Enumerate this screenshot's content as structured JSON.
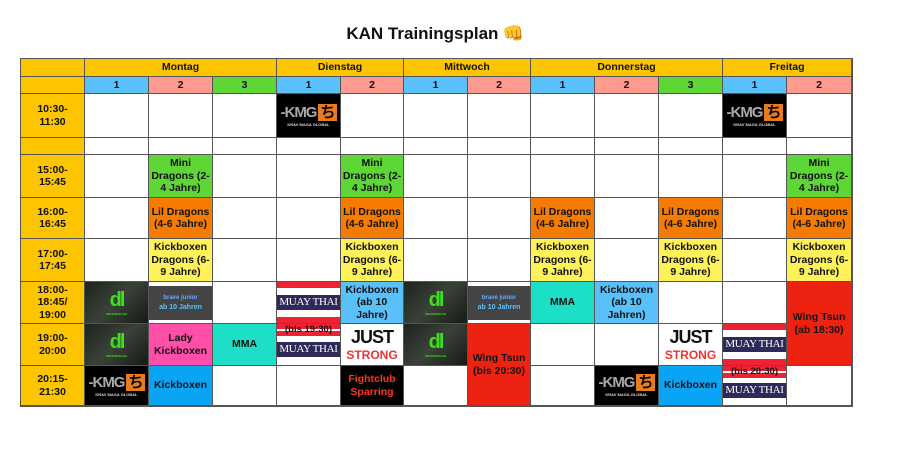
{
  "title": "KAN Trainingsplan",
  "title_icon": "fist-emoji",
  "days": [
    "Montag",
    "Dienstag",
    "Mittwoch",
    "Donnerstag",
    "Freitag"
  ],
  "slots": {
    "montag": [
      "1",
      "2",
      "3"
    ],
    "dienstag": [
      "1",
      "2"
    ],
    "mittwoch": [
      "1",
      "2"
    ],
    "donnerstag": [
      "1",
      "2",
      "3"
    ],
    "freitag": [
      "1",
      "2"
    ]
  },
  "times": [
    "10:30-\n11:30",
    "",
    "15:00-\n15:45",
    "16:00-\n16:45",
    "17:00-\n17:45",
    "18:00-\n18:45/\n19:00",
    "19:00-\n20:00",
    "20:15-\n21:30"
  ],
  "classes": {
    "mini": "Mini Dragons (2-4 Jahre)",
    "lil": "Lil Dragons (4-6 Jahre)",
    "kbd": "Kickboxen Dragons (6-9 Jahre)",
    "lady": "Lady Kickboxen",
    "mma": "MMA",
    "kickboxen": "Kickboxen",
    "kb10_tue": "Kickboxen (ab 10 Jahre)",
    "kb10_thu": "Kickboxen (ab 10 Jahren)",
    "wt_wed": "Wing Tsun (bis 20:30)",
    "wt_fri": "Wing Tsun (ab 18:30)",
    "fightclub": "Fightclub Sparring",
    "bis1930": "(bis 19:30)",
    "bis2030": "(bis 20:30)"
  },
  "logos": {
    "kmg": "KMG",
    "kmg_sub": "KRAV MAGA GLOBAL",
    "dl": "dl",
    "dl_sub": "DEFENCELAB",
    "bj": "brave junior",
    "bj_sub": "ab 10 Jahren",
    "muay": "MUAY THAI",
    "js1": "JUST",
    "js2": "STRONG"
  },
  "colors": {
    "header": "#FCC500",
    "slot1": "#5AC0FA",
    "slot2": "#FF9A8F",
    "slot3": "#5ED636"
  }
}
